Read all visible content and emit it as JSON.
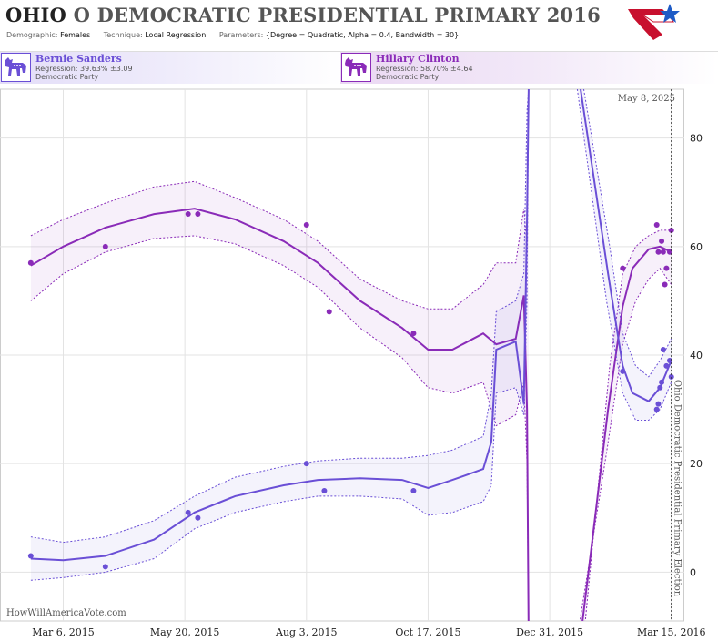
{
  "header": {
    "state": "OHIO",
    "title_rest": "O DEMOCRATIC PRESIDENTIAL PRIMARY 2016",
    "demographic_label": "Demographic:",
    "demographic_value": "Females",
    "technique_label": "Technique:",
    "technique_value": "Local Regression",
    "parameters_label": "Parameters:",
    "parameters_value": "{Degree = Quadratic, Alpha = 0.4, Bandwidth = 30}"
  },
  "candidates": [
    {
      "name": "Bernie Sanders",
      "regression": "Regression: 39.63% ±3.09",
      "party": "Democratic Party",
      "color": "#6a4fd6",
      "icon": "donkey-icon"
    },
    {
      "name": "Hillary Clinton",
      "regression": "Regression: 58.70% ±4.64",
      "party": "Democratic Party",
      "color": "#8a2bb8",
      "icon": "donkey-icon"
    }
  ],
  "chart_data": {
    "type": "line",
    "x_tick_labels": [
      "Mar 6, 2015",
      "May 20, 2015",
      "Aug 3, 2015",
      "Oct 17, 2015",
      "Dec 31, 2015",
      "Mar 15, 2016"
    ],
    "x_ticks": [
      "2015-03-06",
      "2015-05-20",
      "2015-08-03",
      "2015-10-17",
      "2015-12-31",
      "2016-03-15"
    ],
    "x_range": [
      "2015-01-26",
      "2016-03-23"
    ],
    "ylim": [
      -9,
      89
    ],
    "y_ticks": [
      0,
      20,
      40,
      60,
      80
    ],
    "grid": true,
    "date_label": "May 8, 2025",
    "election_date": "2016-03-15",
    "election_label": "Ohio Democratic Presidential Primary Election",
    "watermark": "HowWillAmericaVote.com",
    "series": [
      {
        "name": "Hillary Clinton",
        "color": "#8a2bb8",
        "line": [
          [
            "2015-02-14",
            56.5
          ],
          [
            "2015-03-06",
            60
          ],
          [
            "2015-04-01",
            63.5
          ],
          [
            "2015-05-01",
            66
          ],
          [
            "2015-05-26",
            67
          ],
          [
            "2015-06-20",
            65
          ],
          [
            "2015-07-20",
            61
          ],
          [
            "2015-08-10",
            57
          ],
          [
            "2015-09-05",
            50
          ],
          [
            "2015-10-01",
            45
          ],
          [
            "2015-10-17",
            41
          ],
          [
            "2015-11-01",
            41
          ],
          [
            "2015-11-20",
            44
          ],
          [
            "2015-11-28",
            42
          ],
          [
            "2015-12-10",
            43
          ],
          [
            "2015-12-15",
            51
          ],
          [
            "2015-12-17",
            30
          ],
          [
            "2015-12-18",
            -12
          ]
        ],
        "upper": [
          [
            "2015-02-14",
            62
          ],
          [
            "2015-03-06",
            65
          ],
          [
            "2015-04-01",
            68
          ],
          [
            "2015-05-01",
            71
          ],
          [
            "2015-05-26",
            72
          ],
          [
            "2015-06-20",
            69
          ],
          [
            "2015-07-20",
            65
          ],
          [
            "2015-08-10",
            61
          ],
          [
            "2015-09-05",
            54
          ],
          [
            "2015-10-01",
            50
          ],
          [
            "2015-10-17",
            48.5
          ],
          [
            "2015-11-01",
            48.5
          ],
          [
            "2015-11-20",
            53
          ],
          [
            "2015-11-28",
            57
          ],
          [
            "2015-12-10",
            57
          ],
          [
            "2015-12-15",
            67
          ],
          [
            "2015-12-17",
            60
          ],
          [
            "2015-12-18",
            89
          ]
        ],
        "lower": [
          [
            "2015-02-14",
            50
          ],
          [
            "2015-03-06",
            55
          ],
          [
            "2015-04-01",
            59
          ],
          [
            "2015-05-01",
            61.5
          ],
          [
            "2015-05-26",
            62
          ],
          [
            "2015-06-20",
            60.5
          ],
          [
            "2015-07-20",
            56.5
          ],
          [
            "2015-08-10",
            52.5
          ],
          [
            "2015-09-05",
            45
          ],
          [
            "2015-10-01",
            39.5
          ],
          [
            "2015-10-17",
            34
          ],
          [
            "2015-11-01",
            33
          ],
          [
            "2015-11-20",
            35
          ],
          [
            "2015-11-28",
            27
          ],
          [
            "2015-12-10",
            29
          ],
          [
            "2015-12-15",
            35
          ],
          [
            "2015-12-17",
            20
          ],
          [
            "2015-12-18",
            -12
          ]
        ],
        "tail_line": [
          [
            "2016-01-19",
            -12
          ],
          [
            "2016-02-05",
            30
          ],
          [
            "2016-02-14",
            49
          ],
          [
            "2016-02-20",
            56
          ],
          [
            "2016-03-01",
            59.5
          ],
          [
            "2016-03-08",
            60
          ],
          [
            "2016-03-15",
            59
          ]
        ],
        "tail_upper": [
          [
            "2016-01-21",
            -12
          ],
          [
            "2016-02-06",
            38
          ],
          [
            "2016-02-14",
            55
          ],
          [
            "2016-02-22",
            60
          ],
          [
            "2016-03-01",
            62
          ],
          [
            "2016-03-08",
            63
          ],
          [
            "2016-03-15",
            63
          ]
        ],
        "tail_lower": [
          [
            "2016-01-17",
            -12
          ],
          [
            "2016-02-04",
            22
          ],
          [
            "2016-02-14",
            42
          ],
          [
            "2016-02-22",
            50
          ],
          [
            "2016-03-01",
            54
          ],
          [
            "2016-03-08",
            56
          ],
          [
            "2016-03-15",
            53
          ]
        ],
        "points": [
          [
            "2015-02-14",
            57
          ],
          [
            "2015-04-01",
            60
          ],
          [
            "2015-05-22",
            66
          ],
          [
            "2015-05-28",
            66
          ],
          [
            "2015-08-03",
            64
          ],
          [
            "2015-08-17",
            48
          ],
          [
            "2015-10-08",
            44
          ],
          [
            "2016-02-14",
            56
          ],
          [
            "2016-03-06",
            64
          ],
          [
            "2016-03-07",
            59
          ],
          [
            "2016-03-09",
            61
          ],
          [
            "2016-03-10",
            59
          ],
          [
            "2016-03-11",
            53
          ],
          [
            "2016-03-12",
            56
          ],
          [
            "2016-03-14",
            59
          ],
          [
            "2016-03-15",
            63
          ]
        ]
      },
      {
        "name": "Bernie Sanders",
        "color": "#6a4fd6",
        "line": [
          [
            "2015-02-14",
            2.5
          ],
          [
            "2015-03-06",
            2.2
          ],
          [
            "2015-04-01",
            3
          ],
          [
            "2015-05-01",
            6
          ],
          [
            "2015-05-26",
            11
          ],
          [
            "2015-06-20",
            14
          ],
          [
            "2015-07-20",
            16
          ],
          [
            "2015-08-10",
            17
          ],
          [
            "2015-09-05",
            17.3
          ],
          [
            "2015-10-01",
            17
          ],
          [
            "2015-10-17",
            15.5
          ],
          [
            "2015-11-01",
            17
          ],
          [
            "2015-11-20",
            19
          ],
          [
            "2015-11-25",
            24
          ],
          [
            "2015-11-28",
            41
          ],
          [
            "2015-12-10",
            42.5
          ],
          [
            "2015-12-15",
            31
          ],
          [
            "2015-12-17",
            65
          ],
          [
            "2015-12-18",
            89
          ]
        ],
        "upper": [
          [
            "2015-02-14",
            6.5
          ],
          [
            "2015-03-06",
            5.5
          ],
          [
            "2015-04-01",
            6.5
          ],
          [
            "2015-05-01",
            9.5
          ],
          [
            "2015-05-26",
            14
          ],
          [
            "2015-06-20",
            17.5
          ],
          [
            "2015-07-20",
            19.5
          ],
          [
            "2015-08-10",
            20.5
          ],
          [
            "2015-09-05",
            21
          ],
          [
            "2015-10-01",
            21
          ],
          [
            "2015-10-17",
            21.5
          ],
          [
            "2015-11-01",
            22.5
          ],
          [
            "2015-11-20",
            25
          ],
          [
            "2015-11-25",
            33
          ],
          [
            "2015-11-28",
            48
          ],
          [
            "2015-12-10",
            50
          ],
          [
            "2015-12-15",
            55
          ],
          [
            "2015-12-17",
            85
          ],
          [
            "2015-12-18",
            89
          ]
        ],
        "lower": [
          [
            "2015-02-14",
            -1.5
          ],
          [
            "2015-03-06",
            -1
          ],
          [
            "2015-04-01",
            0
          ],
          [
            "2015-05-01",
            2.5
          ],
          [
            "2015-05-26",
            8
          ],
          [
            "2015-06-20",
            11
          ],
          [
            "2015-07-20",
            13
          ],
          [
            "2015-08-10",
            14
          ],
          [
            "2015-09-05",
            14
          ],
          [
            "2015-10-01",
            13.5
          ],
          [
            "2015-10-17",
            10.5
          ],
          [
            "2015-11-01",
            11
          ],
          [
            "2015-11-20",
            13
          ],
          [
            "2015-11-25",
            16
          ],
          [
            "2015-11-28",
            33
          ],
          [
            "2015-12-10",
            34
          ],
          [
            "2015-12-15",
            29
          ],
          [
            "2015-12-17",
            50
          ],
          [
            "2015-12-18",
            89
          ]
        ],
        "tail_line": [
          [
            "2016-01-19",
            89
          ],
          [
            "2016-02-05",
            55
          ],
          [
            "2016-02-14",
            38
          ],
          [
            "2016-02-20",
            33
          ],
          [
            "2016-03-01",
            31.5
          ],
          [
            "2016-03-08",
            34
          ],
          [
            "2016-03-15",
            39
          ]
        ],
        "tail_upper": [
          [
            "2016-01-21",
            89
          ],
          [
            "2016-02-06",
            60
          ],
          [
            "2016-02-14",
            44
          ],
          [
            "2016-02-22",
            38
          ],
          [
            "2016-03-01",
            36
          ],
          [
            "2016-03-08",
            39
          ],
          [
            "2016-03-15",
            43
          ]
        ],
        "tail_lower": [
          [
            "2016-01-17",
            89
          ],
          [
            "2016-02-04",
            50
          ],
          [
            "2016-02-14",
            33
          ],
          [
            "2016-02-22",
            28
          ],
          [
            "2016-03-01",
            28
          ],
          [
            "2016-03-08",
            30
          ],
          [
            "2016-03-15",
            35
          ]
        ],
        "points": [
          [
            "2015-02-14",
            3
          ],
          [
            "2015-04-01",
            1
          ],
          [
            "2015-05-22",
            11
          ],
          [
            "2015-05-28",
            10
          ],
          [
            "2015-08-03",
            20
          ],
          [
            "2015-08-14",
            15
          ],
          [
            "2015-10-08",
            15
          ],
          [
            "2016-02-14",
            37
          ],
          [
            "2016-03-06",
            30
          ],
          [
            "2016-03-07",
            31
          ],
          [
            "2016-03-08",
            34
          ],
          [
            "2016-03-09",
            35
          ],
          [
            "2016-03-10",
            41
          ],
          [
            "2016-03-12",
            38
          ],
          [
            "2016-03-14",
            39
          ],
          [
            "2016-03-15",
            36
          ]
        ]
      }
    ]
  }
}
